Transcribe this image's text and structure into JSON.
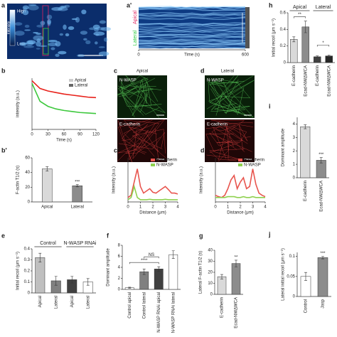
{
  "figure": {
    "labels": [
      "a",
      "a'",
      "b",
      "b'",
      "c",
      "c'",
      "d",
      "d'",
      "e",
      "f",
      "g",
      "h",
      "i",
      "j"
    ]
  },
  "images": {
    "a": {
      "colorbar_high": "High",
      "colorbar_title": "Intensity",
      "colorbar_low": "Low"
    },
    "c": {
      "title": "Apical",
      "top": "N-WASP",
      "bottom": "E-cadherin"
    },
    "d": {
      "title": "Lateral",
      "top": "N-WASP",
      "bottom": "E-cadherin"
    }
  },
  "chart_data": [
    {
      "type": "kymograph",
      "y_labels": [
        "Apical",
        "Lateral"
      ],
      "y_label_colors": [
        "#e0245e",
        "#2ecc40"
      ],
      "xlabel": "Time (s)",
      "xlim": [
        0,
        600
      ],
      "xticks": [
        0,
        600
      ]
    },
    {
      "type": "line",
      "ylabel": "intensity (a.u.)",
      "xlabel": "Time (s)",
      "x": [
        0,
        15,
        30,
        45,
        60,
        75,
        90,
        105,
        120
      ],
      "series": [
        {
          "name": "Apical",
          "color": "#e8221b",
          "values": [
            0.95,
            0.8,
            0.75,
            0.72,
            0.69,
            0.67,
            0.65,
            0.63,
            0.62
          ]
        },
        {
          "name": "Lateral",
          "color": "#3cc83c",
          "values": [
            0.9,
            0.55,
            0.45,
            0.4,
            0.37,
            0.35,
            0.33,
            0.32,
            0.31
          ]
        }
      ],
      "legend_colors": [
        "#cccccc",
        "#666666"
      ],
      "legend": "upper right",
      "xlim": [
        0,
        120
      ],
      "xticks": [
        0,
        30,
        60,
        90,
        120
      ],
      "ylim": [
        0,
        1
      ]
    },
    {
      "type": "bar",
      "ylabel": "F-actin T1/2 (s)",
      "categories": [
        "Apical",
        "Lateral"
      ],
      "values": [
        45,
        22
      ],
      "errors": [
        3,
        1.5
      ],
      "colors": [
        "#d9d9d9",
        "#8c8c8c"
      ],
      "ylim": [
        0,
        60
      ],
      "yticks": [
        0,
        20,
        40,
        60
      ],
      "annotations": [
        {
          "text": "***",
          "at": [
            1
          ]
        }
      ]
    },
    {
      "type": "line",
      "ylabel": "Intensity (a.u.)",
      "xlabel": "Distance (μm)",
      "x": [
        0,
        0.25,
        0.5,
        0.75,
        1,
        1.25,
        1.5,
        1.75,
        2,
        2.25,
        2.5,
        2.75,
        3,
        3.25,
        3.5,
        3.75,
        4
      ],
      "series": [
        {
          "name": "E-cadherin",
          "color": "#e8554e",
          "values": [
            0.1,
            0.15,
            0.45,
            0.75,
            0.35,
            0.2,
            0.25,
            0.3,
            0.22,
            0.2,
            0.25,
            0.3,
            0.35,
            0.28,
            0.2,
            0.2,
            0.18
          ]
        },
        {
          "name": "N-WASP",
          "color": "#8fd14f",
          "values": [
            0.05,
            0.1,
            0.35,
            0.1,
            0.05,
            0.05,
            0.05,
            0.06,
            0.05,
            0.05,
            0.05,
            0.05,
            0.06,
            0.05,
            0.05,
            0.05,
            0.05
          ]
        }
      ],
      "legend": "upper right",
      "xlim": [
        0,
        4
      ],
      "xticks": [
        0,
        1,
        2,
        3,
        4
      ],
      "ylim": [
        0,
        1
      ]
    },
    {
      "type": "line",
      "ylabel": "Intensity (a.u.)",
      "xlabel": "Distance (μm)",
      "x": [
        0,
        0.25,
        0.5,
        0.75,
        1,
        1.25,
        1.5,
        1.75,
        2,
        2.25,
        2.5,
        2.75,
        3,
        3.25,
        3.5,
        3.75,
        4
      ],
      "series": [
        {
          "name": "E-cadherin",
          "color": "#e8554e",
          "values": [
            0.15,
            0.12,
            0.1,
            0.15,
            0.3,
            0.5,
            0.6,
            0.3,
            0.45,
            0.55,
            0.3,
            0.35,
            0.75,
            0.4,
            0.2,
            0.15,
            0.12
          ]
        },
        {
          "name": "N-WASP",
          "color": "#8fd14f",
          "values": [
            0.1,
            0.1,
            0.1,
            0.1,
            0.12,
            0.12,
            0.12,
            0.1,
            0.1,
            0.12,
            0.1,
            0.1,
            0.12,
            0.1,
            0.1,
            0.1,
            0.1
          ]
        }
      ],
      "legend": "upper right",
      "xlim": [
        0,
        4
      ],
      "xticks": [
        0,
        1,
        2,
        3,
        4
      ],
      "ylim": [
        0,
        1
      ]
    },
    {
      "type": "bar",
      "ylabel": "Initial recoil (μm s⁻¹)",
      "groups": [
        "Control",
        "N-WASP RNAi"
      ],
      "categories": [
        "Apical",
        "Lateral",
        "Apical",
        "Lateral"
      ],
      "values": [
        0.32,
        0.11,
        0.12,
        0.1
      ],
      "errors": [
        0.04,
        0.04,
        0.03,
        0.03
      ],
      "colors": [
        "#bfbfbf",
        "#808080",
        "#404040",
        "#ffffff"
      ],
      "ylim": [
        0,
        0.4
      ],
      "yticks": [
        0,
        0.1,
        0.2,
        0.3,
        0.4
      ]
    },
    {
      "type": "bar",
      "ylabel": "Dominant amplitude",
      "categories": [
        "Control apical",
        "Control lateral",
        "N-WASP RNAi apical",
        "N-WASP RNAi lateral"
      ],
      "values": [
        0.3,
        3.2,
        3.7,
        6.3
      ],
      "errors": [
        0.1,
        0.5,
        0.4,
        0.7
      ],
      "colors": [
        "#ffffff",
        "#808080",
        "#404040",
        "#ffffff"
      ],
      "ylim": [
        0,
        8
      ],
      "yticks": [
        0,
        2,
        4,
        6,
        8
      ],
      "annotations": [
        {
          "text": "****",
          "at": [
            0,
            2
          ]
        },
        {
          "text": "NS",
          "at": [
            1,
            2
          ]
        }
      ]
    },
    {
      "type": "bar",
      "ylabel": "Lateral F-actin T1/2 (s)",
      "categories": [
        "E-cadherin",
        "Ecad-NWΔWCA"
      ],
      "values": [
        16,
        28
      ],
      "errors": [
        2,
        3
      ],
      "colors": [
        "#d9d9d9",
        "#8c8c8c"
      ],
      "ylim": [
        0,
        40
      ],
      "yticks": [
        0,
        10,
        20,
        30,
        40
      ],
      "annotations": [
        {
          "text": "**",
          "at": [
            1
          ]
        }
      ]
    },
    {
      "type": "bar",
      "ylabel": "Initial recoil (μm s⁻¹)",
      "groups": [
        "Apical",
        "Lateral"
      ],
      "categories": [
        "E-cadherin",
        "Ecad-NWΔWCA",
        "E-cadherin",
        "Ecad-NWΔWCA"
      ],
      "values": [
        0.28,
        0.43,
        0.07,
        0.08
      ],
      "errors": [
        0.03,
        0.07,
        0.01,
        0.01
      ],
      "colors": [
        "#d9d9d9",
        "#8c8c8c",
        "#404040",
        "#262626"
      ],
      "ylim": [
        0,
        0.6
      ],
      "yticks": [
        0,
        0.2,
        0.4,
        0.6
      ],
      "annotations": [
        {
          "text": "**",
          "at": [
            0,
            1
          ]
        },
        {
          "text": "*",
          "at": [
            2,
            3
          ]
        }
      ]
    },
    {
      "type": "bar",
      "ylabel": "Dominant amplitude",
      "categories": [
        "E-cadherin",
        "Ecad-NWΔWCA"
      ],
      "values": [
        3.8,
        1.3
      ],
      "errors": [
        0.15,
        0.2
      ],
      "colors": [
        "#d9d9d9",
        "#8c8c8c"
      ],
      "ylim": [
        0,
        4.5
      ],
      "yticks": [
        0,
        1,
        2,
        3,
        4
      ],
      "annotations": [
        {
          "text": "***",
          "at": [
            1
          ]
        }
      ]
    },
    {
      "type": "bar",
      "ylabel": "Lateral initial recoil (μm s⁻¹)",
      "categories": [
        "Control",
        "Jasp"
      ],
      "values": [
        0.05,
        0.097
      ],
      "errors": [
        0.01,
        0.003
      ],
      "colors": [
        "#ffffff",
        "#8c8c8c"
      ],
      "ylim": [
        0,
        0.11
      ],
      "yticks": [
        0,
        0.05,
        0.1
      ],
      "annotations": [
        {
          "text": "***",
          "at": [
            1
          ]
        }
      ]
    }
  ]
}
